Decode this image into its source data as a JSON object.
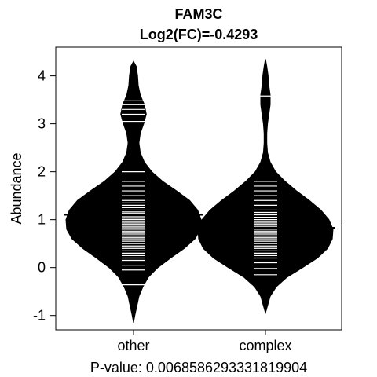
{
  "chart_data": {
    "type": "beanplot",
    "title": "FAM3C",
    "subtitle": "Log2(FC)=-0.4293",
    "ylabel": "Abundance",
    "xlabel": "P-value: 0.00685862933318199​04",
    "categories": [
      "other",
      "complex"
    ],
    "ylim": [
      -1.3,
      4.6
    ],
    "yticks": [
      -1,
      0,
      1,
      2,
      3,
      4
    ],
    "overall_mean": 0.97,
    "means": [
      1.1,
      0.83
    ],
    "beans": [
      {
        "name": "other",
        "profile": [
          [
            -1.15,
            0.0
          ],
          [
            -1.0,
            0.02
          ],
          [
            -0.8,
            0.05
          ],
          [
            -0.6,
            0.08
          ],
          [
            -0.4,
            0.14
          ],
          [
            -0.2,
            0.22
          ],
          [
            0.0,
            0.36
          ],
          [
            0.2,
            0.55
          ],
          [
            0.4,
            0.75
          ],
          [
            0.6,
            0.91
          ],
          [
            0.8,
            0.99
          ],
          [
            1.0,
            1.0
          ],
          [
            1.2,
            0.95
          ],
          [
            1.4,
            0.83
          ],
          [
            1.6,
            0.64
          ],
          [
            1.8,
            0.43
          ],
          [
            2.0,
            0.27
          ],
          [
            2.2,
            0.16
          ],
          [
            2.4,
            0.1
          ],
          [
            2.6,
            0.08
          ],
          [
            2.8,
            0.1
          ],
          [
            3.0,
            0.15
          ],
          [
            3.2,
            0.19
          ],
          [
            3.4,
            0.16
          ],
          [
            3.6,
            0.1
          ],
          [
            3.8,
            0.07
          ],
          [
            4.0,
            0.06
          ],
          [
            4.2,
            0.04
          ],
          [
            4.3,
            0.0
          ]
        ],
        "points": [
          -0.36,
          -0.05,
          0.05,
          0.15,
          0.2,
          0.25,
          0.3,
          0.35,
          0.4,
          0.45,
          0.5,
          0.55,
          0.6,
          0.63,
          0.66,
          0.7,
          0.73,
          0.76,
          0.8,
          0.83,
          0.86,
          0.9,
          0.93,
          0.96,
          1.0,
          1.03,
          1.06,
          1.1,
          1.13,
          1.16,
          1.2,
          1.25,
          1.3,
          1.35,
          1.4,
          1.5,
          1.6,
          1.7,
          1.8,
          2.0,
          3.05,
          3.2,
          3.3,
          3.4,
          3.48
        ]
      },
      {
        "name": "complex",
        "profile": [
          [
            -0.95,
            0.0
          ],
          [
            -0.8,
            0.03
          ],
          [
            -0.6,
            0.07
          ],
          [
            -0.4,
            0.16
          ],
          [
            -0.2,
            0.32
          ],
          [
            0.0,
            0.55
          ],
          [
            0.2,
            0.77
          ],
          [
            0.4,
            0.92
          ],
          [
            0.6,
            0.99
          ],
          [
            0.8,
            1.0
          ],
          [
            1.0,
            0.94
          ],
          [
            1.2,
            0.82
          ],
          [
            1.4,
            0.65
          ],
          [
            1.6,
            0.46
          ],
          [
            1.8,
            0.29
          ],
          [
            2.0,
            0.15
          ],
          [
            2.2,
            0.07
          ],
          [
            2.4,
            0.03
          ],
          [
            2.6,
            0.02
          ],
          [
            2.8,
            0.02
          ],
          [
            3.0,
            0.03
          ],
          [
            3.2,
            0.05
          ],
          [
            3.4,
            0.07
          ],
          [
            3.6,
            0.07
          ],
          [
            3.8,
            0.05
          ],
          [
            4.0,
            0.04
          ],
          [
            4.2,
            0.02
          ],
          [
            4.35,
            0.0
          ]
        ],
        "points": [
          -0.15,
          -0.02,
          0.1,
          0.2,
          0.25,
          0.3,
          0.35,
          0.4,
          0.45,
          0.5,
          0.55,
          0.6,
          0.63,
          0.66,
          0.7,
          0.73,
          0.76,
          0.8,
          0.83,
          0.86,
          0.9,
          0.93,
          0.96,
          1.0,
          1.05,
          1.1,
          1.15,
          1.2,
          1.3,
          1.4,
          1.5,
          1.6,
          1.7,
          1.8,
          3.58
        ]
      }
    ],
    "colors": {
      "bean": "#000000",
      "point": "#ffffff",
      "axis": "#000000",
      "reference_line": "#000000"
    }
  }
}
